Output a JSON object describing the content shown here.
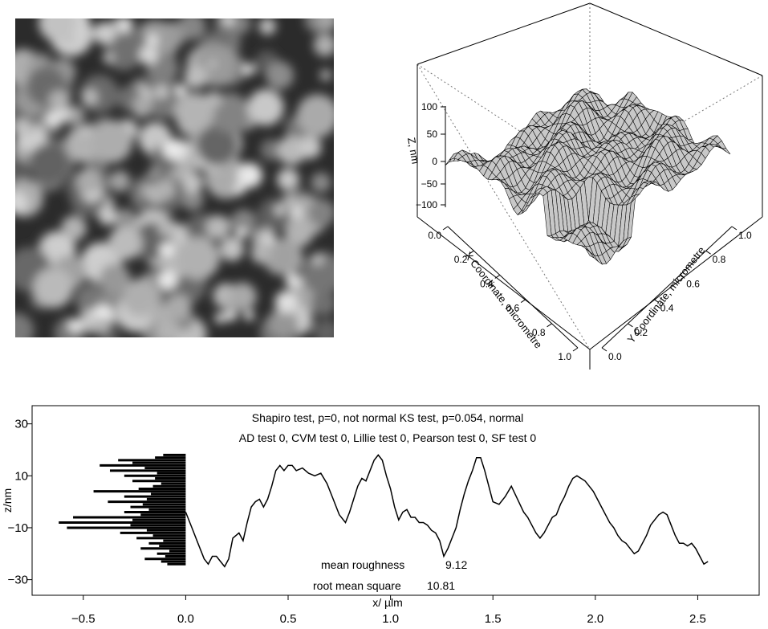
{
  "afm_image": {
    "caption": "",
    "colors": {
      "low": "#2b2b2b",
      "high": "#ececec"
    }
  },
  "surface_plot": {
    "z_label": "Z, nm",
    "x_label": "X Coordinate, micrometre",
    "y_label": "Y Coordinate, micrometre",
    "z_ticks": [
      "100",
      "50",
      "0",
      "−50",
      "−100"
    ],
    "x_ticks": [
      "0.0",
      "0.2",
      "0.4",
      "0.6",
      "0.8",
      "1.0"
    ],
    "y_ticks": [
      "0.0",
      "0.2",
      "0.4",
      "0.6",
      "0.8",
      "1.0"
    ],
    "surface_color": "#c8c8c8"
  },
  "chart_data": {
    "type": "line",
    "title": "",
    "annotations": {
      "line1": "Shapiro test, p=0, not normal     KS test, p=0.054, normal",
      "line2": "AD test 0, CVM test 0, Lillie test 0, Pearson test 0, SF test 0",
      "mean_roughness_label": "mean roughness",
      "mean_roughness_value": "9.12",
      "rms_label": "root mean square",
      "rms_value": "10.81"
    },
    "xlabel": "x/ µlm",
    "ylabel": "z/nm",
    "xlim": [
      -0.75,
      2.8
    ],
    "ylim": [
      -36,
      37
    ],
    "x_ticks": [
      -0.5,
      0.0,
      0.5,
      1.0,
      1.5,
      2.0,
      2.5
    ],
    "x_tick_labels": [
      "−0.5",
      "0.0",
      "0.5",
      "1.0",
      "1.5",
      "2.0",
      "2.5"
    ],
    "y_ticks": [
      -30,
      -10,
      10,
      30
    ],
    "y_tick_labels": [
      "−30",
      "−10",
      "10",
      "30"
    ],
    "series": [
      {
        "x": [
          0.0,
          0.03,
          0.06,
          0.09,
          0.11,
          0.13,
          0.15,
          0.17,
          0.19,
          0.21,
          0.23,
          0.26,
          0.28,
          0.3,
          0.32,
          0.34,
          0.36,
          0.38,
          0.4,
          0.42,
          0.44,
          0.46,
          0.48,
          0.5,
          0.52,
          0.54,
          0.57,
          0.6,
          0.63,
          0.66,
          0.69,
          0.72,
          0.75,
          0.78,
          0.8,
          0.82,
          0.84,
          0.86,
          0.88,
          0.9,
          0.92,
          0.94,
          0.96,
          0.98,
          1.0,
          1.02,
          1.04,
          1.06,
          1.08,
          1.1,
          1.12,
          1.14,
          1.16,
          1.18,
          1.2,
          1.22,
          1.24,
          1.26,
          1.28,
          1.3,
          1.32,
          1.34,
          1.36,
          1.38,
          1.4,
          1.42,
          1.44,
          1.46,
          1.48,
          1.5,
          1.53,
          1.56,
          1.59,
          1.62,
          1.65,
          1.67,
          1.69,
          1.71,
          1.73,
          1.75,
          1.77,
          1.79,
          1.81,
          1.83,
          1.85,
          1.87,
          1.89,
          1.91,
          1.93,
          1.95,
          1.97,
          1.99,
          2.01,
          2.03,
          2.05,
          2.07,
          2.09,
          2.11,
          2.13,
          2.15,
          2.17,
          2.19,
          2.21,
          2.23,
          2.25,
          2.27,
          2.29,
          2.31,
          2.33,
          2.35,
          2.37,
          2.39,
          2.41,
          2.43,
          2.45,
          2.47,
          2.49,
          2.51,
          2.53,
          2.55
        ],
        "y": [
          -4,
          -10,
          -16,
          -22,
          -24,
          -21,
          -21,
          -23,
          -25,
          -22,
          -14,
          -12,
          -15,
          -8,
          -2,
          0,
          1,
          -2,
          1,
          6,
          12,
          14,
          12,
          14,
          14,
          12,
          13,
          11,
          10,
          11,
          7,
          1,
          -5,
          -8,
          -4,
          1,
          6,
          9,
          8,
          12,
          16,
          18,
          16,
          10,
          5,
          -2,
          -7,
          -4,
          -3,
          -6,
          -6,
          -8,
          -8,
          -9,
          -11,
          -12,
          -15,
          -21,
          -18,
          -14,
          -10,
          -3,
          3,
          8,
          12,
          17,
          17,
          12,
          6,
          0,
          -1,
          2,
          6,
          1,
          -4,
          -6,
          -9,
          -12,
          -14,
          -12,
          -9,
          -6,
          -5,
          -1,
          2,
          6,
          9,
          10,
          9,
          8,
          6,
          4,
          1,
          -2,
          -5,
          -8,
          -10,
          -13,
          -15,
          -16,
          -18,
          -20,
          -19,
          -16,
          -13,
          -9,
          -7,
          -5,
          -4,
          -5,
          -9,
          -13,
          -16,
          -16,
          -17,
          -16,
          -18,
          -21,
          -24,
          -23
        ]
      }
    ],
    "histogram": {
      "bin_y": [
        -24,
        -23,
        -22,
        -21,
        -20,
        -19,
        -18,
        -17,
        -16,
        -15,
        -14,
        -13,
        -12,
        -11,
        -10,
        -9,
        -8,
        -7,
        -6,
        -5,
        -4,
        -3,
        -2,
        -1,
        0,
        1,
        2,
        3,
        4,
        5,
        6,
        7,
        8,
        9,
        10,
        11,
        12,
        13,
        14,
        15,
        16,
        17,
        18
      ],
      "lengths": [
        0.09,
        0.12,
        0.2,
        0.1,
        0.14,
        0.08,
        0.22,
        0.13,
        0.18,
        0.11,
        0.24,
        0.16,
        0.32,
        0.19,
        0.58,
        0.27,
        0.62,
        0.26,
        0.55,
        0.22,
        0.3,
        0.18,
        0.27,
        0.21,
        0.38,
        0.19,
        0.3,
        0.17,
        0.45,
        0.23,
        0.16,
        0.12,
        0.26,
        0.15,
        0.3,
        0.14,
        0.37,
        0.2,
        0.42,
        0.26,
        0.33,
        0.15,
        0.11
      ]
    }
  }
}
